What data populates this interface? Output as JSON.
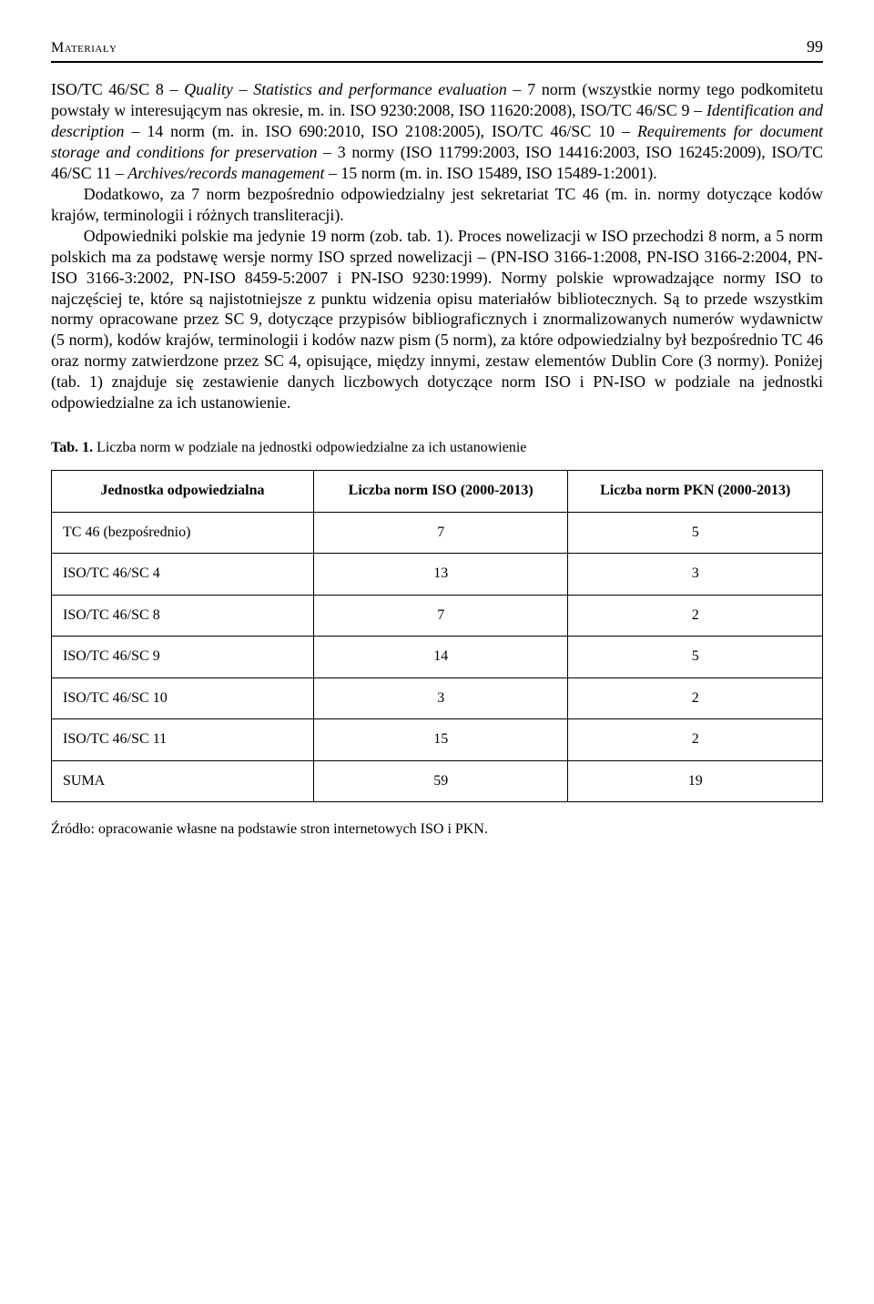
{
  "header": {
    "label": "Materiały",
    "page": "99"
  },
  "para1": "ISO/TC 46/SC 8 – <span class=\"italic\">Quality – Statistics and performance evaluation</span> – 7 norm (wszystkie normy tego podkomitetu powstały w interesującym nas okresie, m. in. ISO 9230:2008, ISO 11620:2008), ISO/TC 46/SC 9 – <span class=\"italic\">Identification and description</span> – 14 norm (m. in. ISO 690:2010, ISO 2108:2005), ISO/TC 46/SC 10 – <span class=\"italic\">Requirements for document storage and conditions for preservation</span> – 3 normy (ISO 11799:2003, ISO 14416:2003, ISO 16245:2009), ISO/TC 46/SC 11 – <span class=\"italic\">Archives/records management</span> – 15 norm (m. in. ISO 15489, ISO 15489-1:2001).",
  "para2": "Dodatkowo, za 7 norm bezpośrednio odpowiedzialny jest sekretariat TC 46 (m. in. normy dotyczące kodów krajów, terminologii i różnych transliteracji).",
  "para3": "Odpowiedniki polskie ma jedynie 19 norm (zob. tab. 1). Proces nowelizacji w ISO przechodzi 8 norm, a 5 norm polskich ma za podstawę wersje normy ISO sprzed nowelizacji – (PN-ISO 3166-1:2008, PN-ISO 3166-2:2004, PN-ISO 3166-3:2002, PN-ISO 8459-5:2007 i PN-ISO 9230:1999). Normy polskie wprowadzające normy ISO to najczęściej te, które są najistotniejsze z punktu widzenia opisu materiałów bibliotecznych. Są to przede wszystkim normy opracowane przez SC 9, dotyczące przypisów bibliograficznych i znormalizowanych numerów wydawnictw (5 norm), kodów krajów, terminologii i kodów nazw pism (5 norm), za które odpowiedzialny był bezpośrednio TC 46 oraz normy zatwierdzone przez SC 4, opisujące, między innymi, zestaw elementów Dublin Core (3 normy). Poniżej (tab. 1) znajduje się zestawienie danych liczbowych dotyczące norm ISO i PN-ISO w podziale na jednostki odpowiedzialne za ich ustanowienie.",
  "caption": "<b>Tab. 1.</b> Liczba norm w podziale na jednostki odpowiedzialne za ich ustanowienie",
  "table": {
    "headers": [
      "Jednostka odpowiedzialna",
      "Liczba norm ISO (2000-2013)",
      "Liczba norm PKN (2000-2013)"
    ],
    "rows": [
      [
        "TC 46 (bezpośrednio)",
        "7",
        "5"
      ],
      [
        "ISO/TC 46/SC 4",
        "13",
        "3"
      ],
      [
        "ISO/TC 46/SC 8",
        "7",
        "2"
      ],
      [
        "ISO/TC 46/SC 9",
        "14",
        "5"
      ],
      [
        "ISO/TC 46/SC 10",
        "3",
        "2"
      ],
      [
        "ISO/TC 46/SC 11",
        "15",
        "2"
      ],
      [
        "SUMA",
        "59",
        "19"
      ]
    ]
  },
  "source": "Źródło: opracowanie własne na podstawie stron internetowych ISO i PKN."
}
